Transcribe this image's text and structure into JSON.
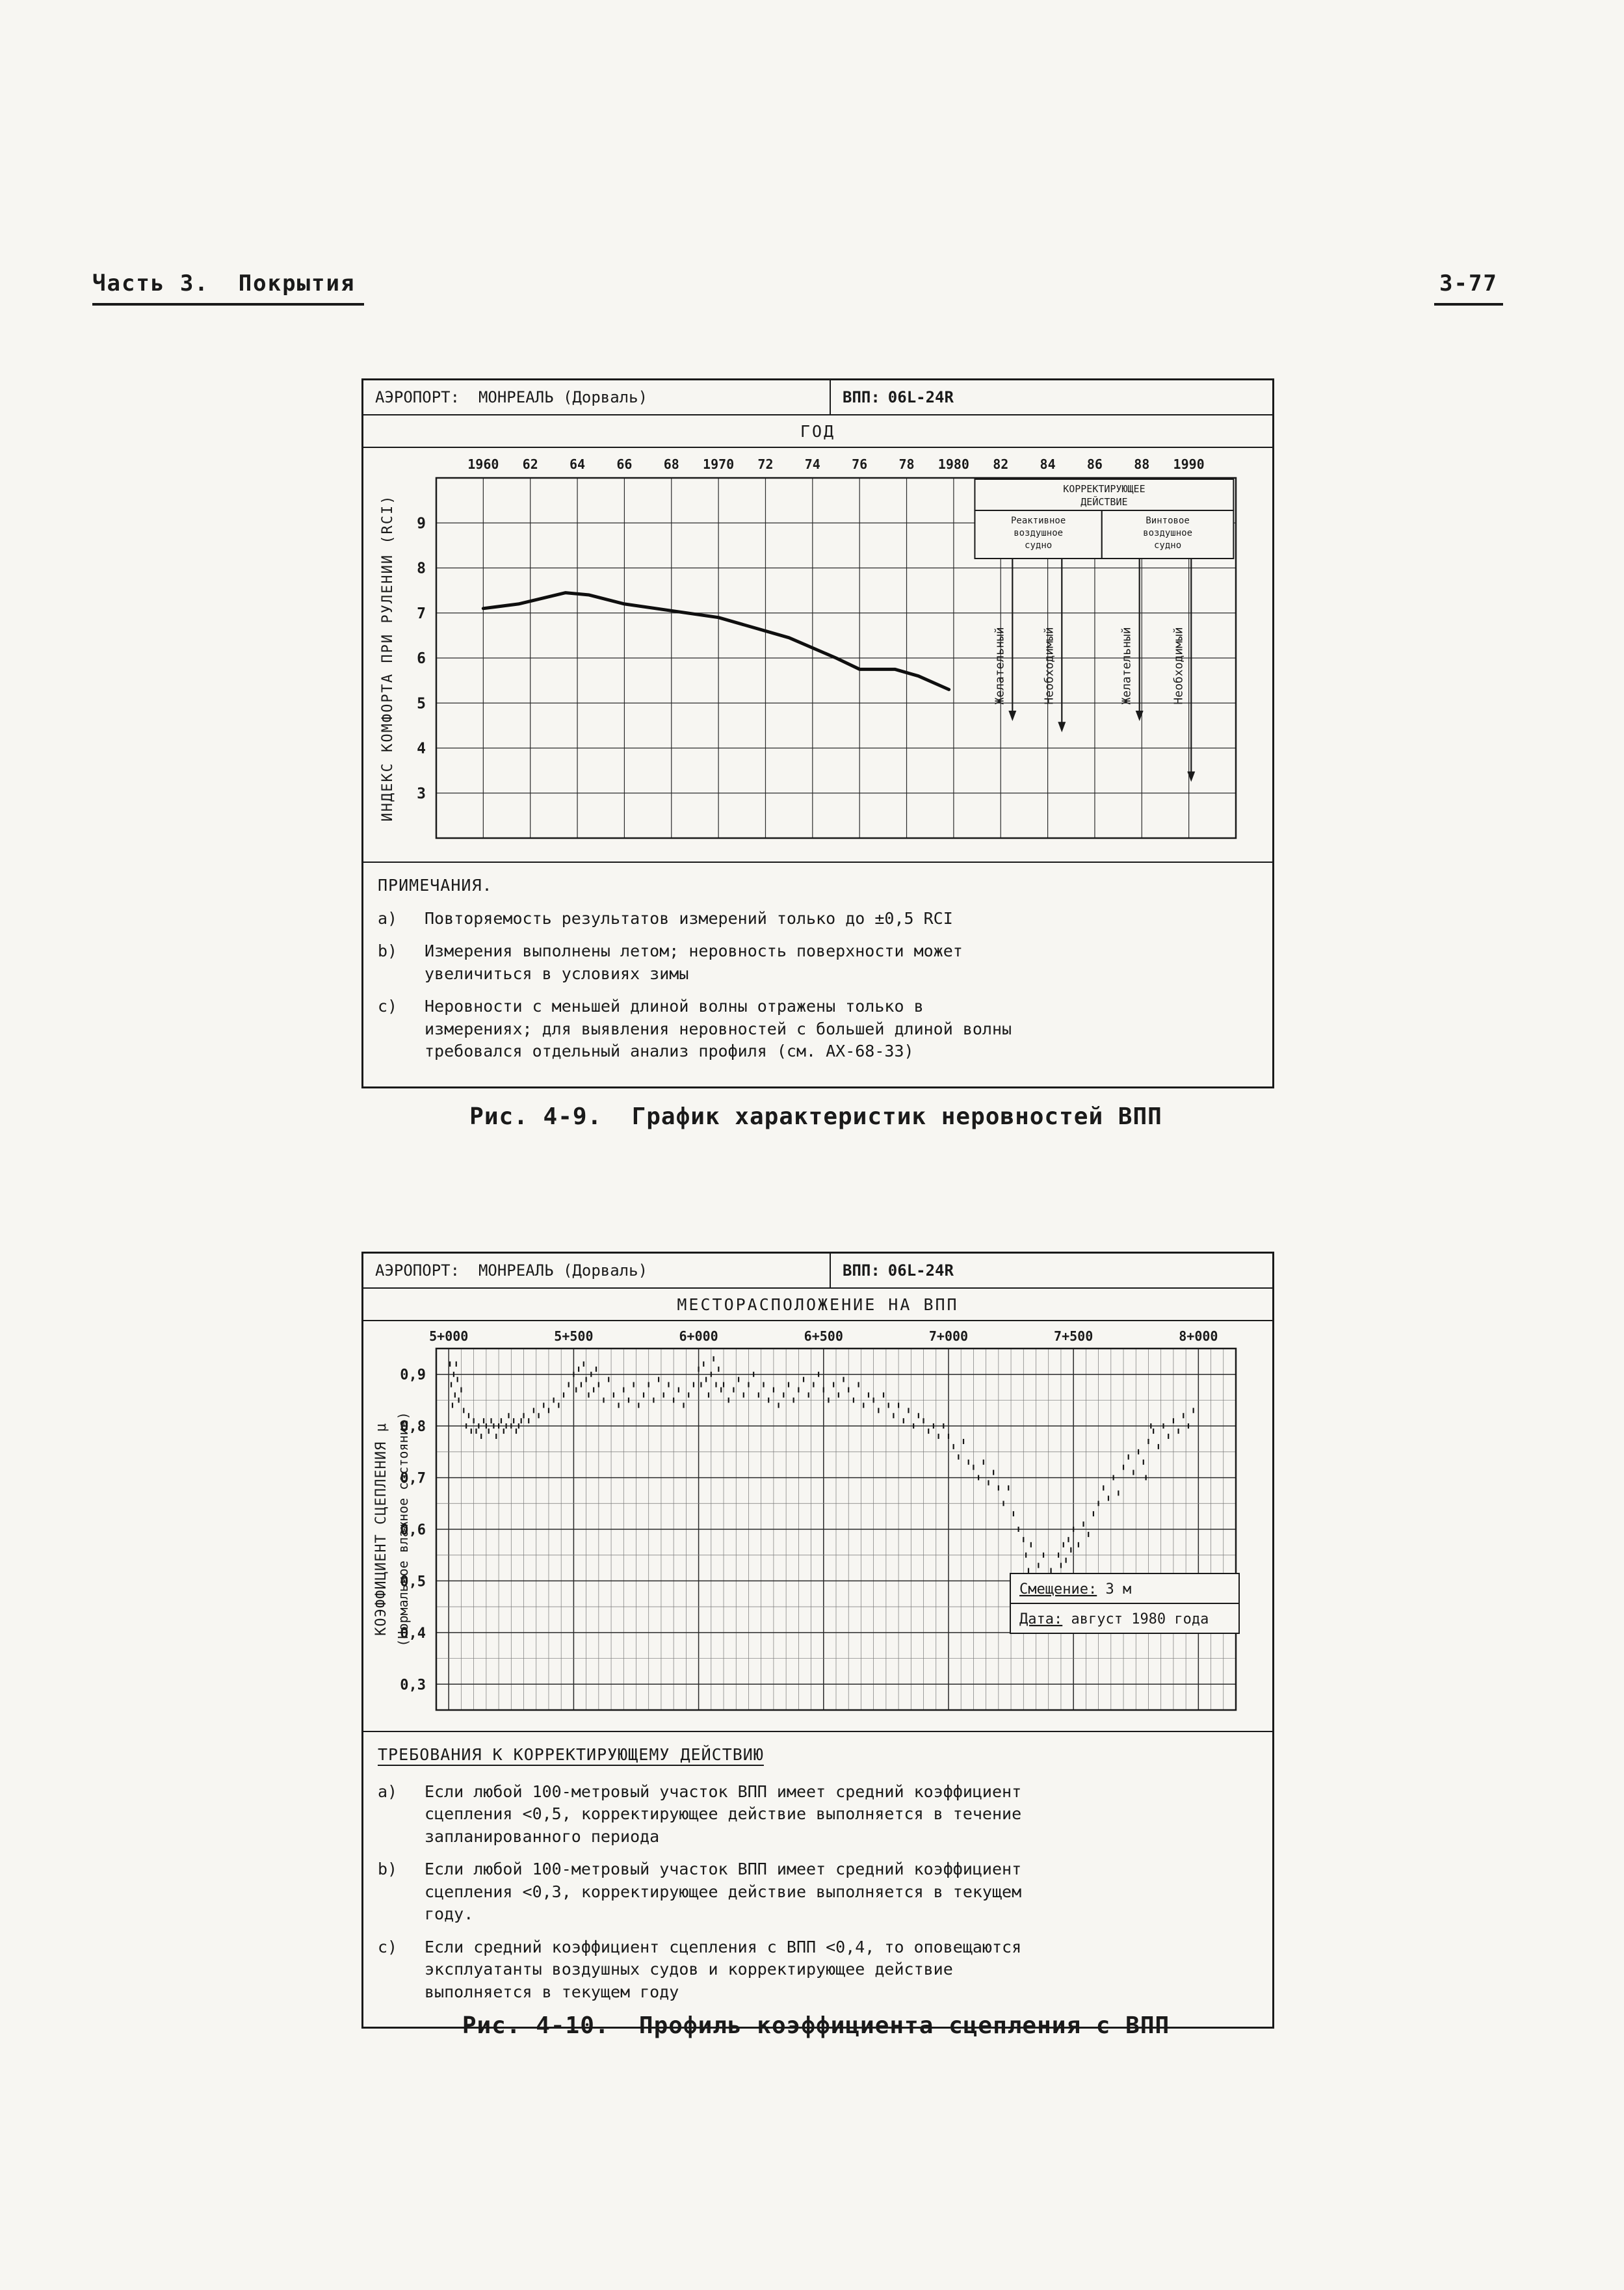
{
  "page": {
    "header_left": "Часть 3.  Покрытия",
    "header_right": "3-77"
  },
  "figure1": {
    "airport_label": "АЭРОПОРТ:  МОНРЕАЛЬ (Дорваль)",
    "runway_key": "ВПП:",
    "runway_value": "06L-24R",
    "notes_title": "ПРИМЕЧАНИЯ.",
    "notes": [
      {
        "key": "a)",
        "text": "Повторяемость результатов измерений только до ±0,5 RCI"
      },
      {
        "key": "b)",
        "text": "Измерения выполнены летом; неровность поверхности может увеличиться в условиях зимы"
      },
      {
        "key": "c)",
        "text": "Неровности с меньшей длиной волны отражены только в измерениях; для выявления неровностей с большей длиной волны требовался отдельный анализ профиля (см. АХ-68-33)"
      }
    ],
    "caption": "Рис. 4-9.  График характеристик неровностей ВПП"
  },
  "figure2": {
    "airport_label": "АЭРОПОРТ:  МОНРЕАЛЬ (Дорваль)",
    "runway_key": "ВПП:",
    "runway_value": "06L-24R",
    "requirements_title": "ТРЕБОВАНИЯ К КОРРЕКТИРУЮЩЕМУ ДЕЙСТВИЮ",
    "requirements": [
      {
        "key": "a)",
        "text": "Если любой 100-метровый участок ВПП имеет средний коэффициент сцепления <0,5, корректирующее действие выполняется в течение запланированного периода"
      },
      {
        "key": "b)",
        "text": "Если любой 100-метровый участок ВПП имеет средний коэффициент сцепления <0,3, корректирующее действие выполняется в текущем году."
      },
      {
        "key": "c)",
        "text": "Если средний коэффициент сцепления с ВПП <0,4, то оповещаются эксплуатанты воздушных судов и корректирующее действие выполняется в текущем году"
      }
    ],
    "caption": "Рис. 4-10.  Профиль коэффициента сцепления с ВПП"
  },
  "chart_data": [
    {
      "type": "line",
      "title": "График характеристик неровностей ВПП",
      "xlabel": "ГОД",
      "ylabel": "ИНДЕКС КОМФОРТА ПРИ РУЛЕНИИ (RCI)",
      "xlim": [
        1958,
        1992
      ],
      "ylim": [
        2,
        10
      ],
      "x_tick_values": [
        1960,
        1962,
        1964,
        1966,
        1968,
        1970,
        1972,
        1974,
        1976,
        1978,
        1980,
        1982,
        1984,
        1986,
        1988,
        1990
      ],
      "x_tick_labels": [
        "1960",
        "62",
        "64",
        "66",
        "68",
        "1970",
        "72",
        "74",
        "76",
        "78",
        "1980",
        "82",
        "84",
        "86",
        "88",
        "1990"
      ],
      "y_tick_values": [
        9,
        8,
        7,
        6,
        5,
        4,
        3
      ],
      "y_tick_labels": [
        "9",
        "8",
        "7",
        "6",
        "5",
        "4",
        "3"
      ],
      "series": [
        {
          "name": "RCI",
          "x": [
            1960,
            1961.5,
            1963.5,
            1964.5,
            1966,
            1968,
            1970,
            1971,
            1973,
            1975,
            1976,
            1977.5,
            1978.5,
            1979.8
          ],
          "values": [
            7.1,
            7.2,
            7.45,
            7.4,
            7.2,
            7.05,
            6.9,
            6.75,
            6.45,
            6.0,
            5.75,
            5.75,
            5.6,
            5.3
          ]
        }
      ],
      "corrective_action": {
        "title": "КОРРЕКТИРУЮЩЕЕ ДЕЙСТВИЕ",
        "title_lines": [
          "КОРРЕКТИРУЮЩЕЕ",
          "ДЕЙСТВИЕ"
        ],
        "columns": [
          {
            "name": "Реактивное воздушное судно",
            "lines": [
              "Реактивное",
              "воздушное",
              "судно"
            ]
          },
          {
            "name": "Винтовое воздушное судно",
            "lines": [
              "Винтовое",
              "воздушное",
              "судно"
            ]
          }
        ],
        "x_range": [
          1980.9,
          1991.9
        ],
        "split_x": 1986.3,
        "arrows": [
          {
            "x": 1982.5,
            "label": "Желательный",
            "to": 4.6
          },
          {
            "x": 1984.6,
            "label": "Необходимый",
            "to": 4.35
          },
          {
            "x": 1987.9,
            "label": "Желательный",
            "to": 4.6
          },
          {
            "x": 1990.1,
            "label": "Необходимый",
            "to": 3.25
          }
        ]
      }
    },
    {
      "type": "scatter",
      "title": "МЕСТОРАСПОЛОЖЕНИЕ НА ВПП",
      "xlabel": "МЕСТОРАСПОЛОЖЕНИЕ НА ВПП",
      "ylabel": "КОЭФФИЦИЕНТ СЦЕПЛЕНИЯ μ (Нормальное влажное состояние)",
      "ylabel_lines": [
        "КОЭФФИЦИЕНТ СЦЕПЛЕНИЯ μ",
        "(Нормальное влажное состояние)"
      ],
      "xlim": [
        4950,
        8150
      ],
      "ylim": [
        0.25,
        0.95
      ],
      "minor_x_step": 50,
      "minor_y_step": 0.05,
      "x_tick_values": [
        5000,
        5500,
        6000,
        6500,
        7000,
        7500,
        8000
      ],
      "x_tick_labels": [
        "5+000",
        "5+500",
        "6+000",
        "6+500",
        "7+000",
        "7+500",
        "8+000"
      ],
      "y_tick_values": [
        0.9,
        0.8,
        0.7,
        0.6,
        0.5,
        0.4,
        0.3
      ],
      "y_tick_labels": [
        "0,9",
        "0,8",
        "0,7",
        "0,6",
        "0,5",
        "0,4",
        "0,3"
      ],
      "legend": [
        {
          "label": "Смещение:",
          "value": "3 м"
        },
        {
          "label": "Дата:",
          "value": "август 1980 года"
        }
      ],
      "points": [
        [
          5005,
          0.92
        ],
        [
          5010,
          0.88
        ],
        [
          5015,
          0.84
        ],
        [
          5020,
          0.9
        ],
        [
          5025,
          0.86
        ],
        [
          5030,
          0.92
        ],
        [
          5035,
          0.89
        ],
        [
          5040,
          0.85
        ],
        [
          5050,
          0.87
        ],
        [
          5060,
          0.83
        ],
        [
          5070,
          0.8
        ],
        [
          5080,
          0.82
        ],
        [
          5090,
          0.79
        ],
        [
          5100,
          0.81
        ],
        [
          5110,
          0.79
        ],
        [
          5120,
          0.8
        ],
        [
          5130,
          0.78
        ],
        [
          5140,
          0.81
        ],
        [
          5150,
          0.8
        ],
        [
          5160,
          0.79
        ],
        [
          5170,
          0.81
        ],
        [
          5180,
          0.8
        ],
        [
          5190,
          0.78
        ],
        [
          5200,
          0.8
        ],
        [
          5210,
          0.81
        ],
        [
          5220,
          0.79
        ],
        [
          5230,
          0.8
        ],
        [
          5240,
          0.82
        ],
        [
          5250,
          0.8
        ],
        [
          5260,
          0.81
        ],
        [
          5270,
          0.79
        ],
        [
          5280,
          0.8
        ],
        [
          5290,
          0.81
        ],
        [
          5300,
          0.82
        ],
        [
          5320,
          0.81
        ],
        [
          5340,
          0.83
        ],
        [
          5360,
          0.82
        ],
        [
          5380,
          0.84
        ],
        [
          5400,
          0.83
        ],
        [
          5420,
          0.85
        ],
        [
          5440,
          0.84
        ],
        [
          5460,
          0.86
        ],
        [
          5480,
          0.88
        ],
        [
          5500,
          0.9
        ],
        [
          5510,
          0.87
        ],
        [
          5520,
          0.91
        ],
        [
          5530,
          0.88
        ],
        [
          5540,
          0.92
        ],
        [
          5550,
          0.89
        ],
        [
          5560,
          0.86
        ],
        [
          5570,
          0.9
        ],
        [
          5580,
          0.87
        ],
        [
          5590,
          0.91
        ],
        [
          5600,
          0.88
        ],
        [
          5620,
          0.85
        ],
        [
          5640,
          0.89
        ],
        [
          5660,
          0.86
        ],
        [
          5680,
          0.84
        ],
        [
          5700,
          0.87
        ],
        [
          5720,
          0.85
        ],
        [
          5740,
          0.88
        ],
        [
          5760,
          0.84
        ],
        [
          5780,
          0.86
        ],
        [
          5800,
          0.88
        ],
        [
          5820,
          0.85
        ],
        [
          5840,
          0.89
        ],
        [
          5860,
          0.86
        ],
        [
          5880,
          0.88
        ],
        [
          5900,
          0.85
        ],
        [
          5920,
          0.87
        ],
        [
          5940,
          0.84
        ],
        [
          5960,
          0.86
        ],
        [
          5980,
          0.88
        ],
        [
          6000,
          0.91
        ],
        [
          6010,
          0.88
        ],
        [
          6020,
          0.92
        ],
        [
          6030,
          0.89
        ],
        [
          6040,
          0.86
        ],
        [
          6050,
          0.9
        ],
        [
          6060,
          0.93
        ],
        [
          6070,
          0.88
        ],
        [
          6080,
          0.91
        ],
        [
          6090,
          0.87
        ],
        [
          6100,
          0.88
        ],
        [
          6120,
          0.85
        ],
        [
          6140,
          0.87
        ],
        [
          6160,
          0.89
        ],
        [
          6180,
          0.86
        ],
        [
          6200,
          0.88
        ],
        [
          6220,
          0.9
        ],
        [
          6240,
          0.86
        ],
        [
          6260,
          0.88
        ],
        [
          6280,
          0.85
        ],
        [
          6300,
          0.87
        ],
        [
          6320,
          0.84
        ],
        [
          6340,
          0.86
        ],
        [
          6360,
          0.88
        ],
        [
          6380,
          0.85
        ],
        [
          6400,
          0.87
        ],
        [
          6420,
          0.89
        ],
        [
          6440,
          0.86
        ],
        [
          6460,
          0.88
        ],
        [
          6480,
          0.9
        ],
        [
          6500,
          0.87
        ],
        [
          6520,
          0.85
        ],
        [
          6540,
          0.88
        ],
        [
          6560,
          0.86
        ],
        [
          6580,
          0.89
        ],
        [
          6600,
          0.87
        ],
        [
          6620,
          0.85
        ],
        [
          6640,
          0.88
        ],
        [
          6660,
          0.84
        ],
        [
          6680,
          0.86
        ],
        [
          6700,
          0.85
        ],
        [
          6720,
          0.83
        ],
        [
          6740,
          0.86
        ],
        [
          6760,
          0.84
        ],
        [
          6780,
          0.82
        ],
        [
          6800,
          0.84
        ],
        [
          6820,
          0.81
        ],
        [
          6840,
          0.83
        ],
        [
          6860,
          0.8
        ],
        [
          6880,
          0.82
        ],
        [
          6900,
          0.81
        ],
        [
          6920,
          0.79
        ],
        [
          6940,
          0.8
        ],
        [
          6960,
          0.78
        ],
        [
          6980,
          0.8
        ],
        [
          7000,
          0.78
        ],
        [
          7020,
          0.76
        ],
        [
          7040,
          0.74
        ],
        [
          7060,
          0.77
        ],
        [
          7080,
          0.73
        ],
        [
          7100,
          0.72
        ],
        [
          7120,
          0.7
        ],
        [
          7140,
          0.73
        ],
        [
          7160,
          0.69
        ],
        [
          7180,
          0.71
        ],
        [
          7200,
          0.68
        ],
        [
          7220,
          0.65
        ],
        [
          7240,
          0.68
        ],
        [
          7260,
          0.63
        ],
        [
          7280,
          0.6
        ],
        [
          7300,
          0.58
        ],
        [
          7310,
          0.55
        ],
        [
          7320,
          0.52
        ],
        [
          7330,
          0.57
        ],
        [
          7340,
          0.5
        ],
        [
          7350,
          0.47
        ],
        [
          7360,
          0.53
        ],
        [
          7370,
          0.49
        ],
        [
          7380,
          0.55
        ],
        [
          7390,
          0.51
        ],
        [
          7400,
          0.48
        ],
        [
          7410,
          0.52
        ],
        [
          7420,
          0.46
        ],
        [
          7430,
          0.5
        ],
        [
          7440,
          0.55
        ],
        [
          7450,
          0.53
        ],
        [
          7460,
          0.57
        ],
        [
          7470,
          0.54
        ],
        [
          7480,
          0.58
        ],
        [
          7490,
          0.56
        ],
        [
          7500,
          0.6
        ],
        [
          7520,
          0.57
        ],
        [
          7540,
          0.61
        ],
        [
          7560,
          0.59
        ],
        [
          7580,
          0.63
        ],
        [
          7600,
          0.65
        ],
        [
          7620,
          0.68
        ],
        [
          7640,
          0.66
        ],
        [
          7660,
          0.7
        ],
        [
          7680,
          0.67
        ],
        [
          7700,
          0.72
        ],
        [
          7720,
          0.74
        ],
        [
          7740,
          0.71
        ],
        [
          7760,
          0.75
        ],
        [
          7780,
          0.73
        ],
        [
          7790,
          0.7
        ],
        [
          7800,
          0.77
        ],
        [
          7810,
          0.8
        ],
        [
          7820,
          0.79
        ],
        [
          7840,
          0.76
        ],
        [
          7860,
          0.8
        ],
        [
          7880,
          0.78
        ],
        [
          7900,
          0.81
        ],
        [
          7920,
          0.79
        ],
        [
          7940,
          0.82
        ],
        [
          7960,
          0.8
        ],
        [
          7980,
          0.83
        ]
      ]
    }
  ]
}
